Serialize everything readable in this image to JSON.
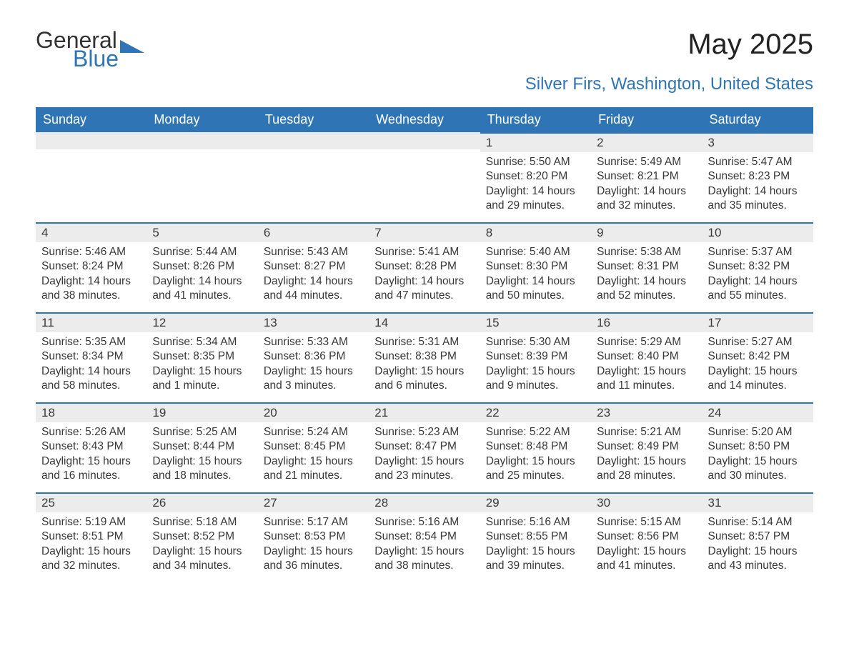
{
  "logo": {
    "word1": "General",
    "word2": "Blue"
  },
  "title": "May 2025",
  "subtitle": "Silver Firs, Washington, United States",
  "colors": {
    "accent": "#2f75b5",
    "header_text": "#ffffff",
    "daybar_bg": "#ececec",
    "daybar_border": "#2f75b5",
    "body_text": "#383838",
    "title_text": "#222222",
    "background": "#ffffff"
  },
  "font_sizes": {
    "title": 40,
    "subtitle": 24,
    "day_header": 18,
    "day_number": 17,
    "body": 15.5,
    "logo": 32
  },
  "layout": {
    "columns": 7,
    "rows": 5,
    "aspect_ratio": "1188x918"
  },
  "day_headers": [
    "Sunday",
    "Monday",
    "Tuesday",
    "Wednesday",
    "Thursday",
    "Friday",
    "Saturday"
  ],
  "weeks": [
    [
      {
        "empty": true
      },
      {
        "empty": true
      },
      {
        "empty": true
      },
      {
        "empty": true
      },
      {
        "day": "1",
        "sunrise": "Sunrise: 5:50 AM",
        "sunset": "Sunset: 8:20 PM",
        "daylight": "Daylight: 14 hours and 29 minutes."
      },
      {
        "day": "2",
        "sunrise": "Sunrise: 5:49 AM",
        "sunset": "Sunset: 8:21 PM",
        "daylight": "Daylight: 14 hours and 32 minutes."
      },
      {
        "day": "3",
        "sunrise": "Sunrise: 5:47 AM",
        "sunset": "Sunset: 8:23 PM",
        "daylight": "Daylight: 14 hours and 35 minutes."
      }
    ],
    [
      {
        "day": "4",
        "sunrise": "Sunrise: 5:46 AM",
        "sunset": "Sunset: 8:24 PM",
        "daylight": "Daylight: 14 hours and 38 minutes."
      },
      {
        "day": "5",
        "sunrise": "Sunrise: 5:44 AM",
        "sunset": "Sunset: 8:26 PM",
        "daylight": "Daylight: 14 hours and 41 minutes."
      },
      {
        "day": "6",
        "sunrise": "Sunrise: 5:43 AM",
        "sunset": "Sunset: 8:27 PM",
        "daylight": "Daylight: 14 hours and 44 minutes."
      },
      {
        "day": "7",
        "sunrise": "Sunrise: 5:41 AM",
        "sunset": "Sunset: 8:28 PM",
        "daylight": "Daylight: 14 hours and 47 minutes."
      },
      {
        "day": "8",
        "sunrise": "Sunrise: 5:40 AM",
        "sunset": "Sunset: 8:30 PM",
        "daylight": "Daylight: 14 hours and 50 minutes."
      },
      {
        "day": "9",
        "sunrise": "Sunrise: 5:38 AM",
        "sunset": "Sunset: 8:31 PM",
        "daylight": "Daylight: 14 hours and 52 minutes."
      },
      {
        "day": "10",
        "sunrise": "Sunrise: 5:37 AM",
        "sunset": "Sunset: 8:32 PM",
        "daylight": "Daylight: 14 hours and 55 minutes."
      }
    ],
    [
      {
        "day": "11",
        "sunrise": "Sunrise: 5:35 AM",
        "sunset": "Sunset: 8:34 PM",
        "daylight": "Daylight: 14 hours and 58 minutes."
      },
      {
        "day": "12",
        "sunrise": "Sunrise: 5:34 AM",
        "sunset": "Sunset: 8:35 PM",
        "daylight": "Daylight: 15 hours and 1 minute."
      },
      {
        "day": "13",
        "sunrise": "Sunrise: 5:33 AM",
        "sunset": "Sunset: 8:36 PM",
        "daylight": "Daylight: 15 hours and 3 minutes."
      },
      {
        "day": "14",
        "sunrise": "Sunrise: 5:31 AM",
        "sunset": "Sunset: 8:38 PM",
        "daylight": "Daylight: 15 hours and 6 minutes."
      },
      {
        "day": "15",
        "sunrise": "Sunrise: 5:30 AM",
        "sunset": "Sunset: 8:39 PM",
        "daylight": "Daylight: 15 hours and 9 minutes."
      },
      {
        "day": "16",
        "sunrise": "Sunrise: 5:29 AM",
        "sunset": "Sunset: 8:40 PM",
        "daylight": "Daylight: 15 hours and 11 minutes."
      },
      {
        "day": "17",
        "sunrise": "Sunrise: 5:27 AM",
        "sunset": "Sunset: 8:42 PM",
        "daylight": "Daylight: 15 hours and 14 minutes."
      }
    ],
    [
      {
        "day": "18",
        "sunrise": "Sunrise: 5:26 AM",
        "sunset": "Sunset: 8:43 PM",
        "daylight": "Daylight: 15 hours and 16 minutes."
      },
      {
        "day": "19",
        "sunrise": "Sunrise: 5:25 AM",
        "sunset": "Sunset: 8:44 PM",
        "daylight": "Daylight: 15 hours and 18 minutes."
      },
      {
        "day": "20",
        "sunrise": "Sunrise: 5:24 AM",
        "sunset": "Sunset: 8:45 PM",
        "daylight": "Daylight: 15 hours and 21 minutes."
      },
      {
        "day": "21",
        "sunrise": "Sunrise: 5:23 AM",
        "sunset": "Sunset: 8:47 PM",
        "daylight": "Daylight: 15 hours and 23 minutes."
      },
      {
        "day": "22",
        "sunrise": "Sunrise: 5:22 AM",
        "sunset": "Sunset: 8:48 PM",
        "daylight": "Daylight: 15 hours and 25 minutes."
      },
      {
        "day": "23",
        "sunrise": "Sunrise: 5:21 AM",
        "sunset": "Sunset: 8:49 PM",
        "daylight": "Daylight: 15 hours and 28 minutes."
      },
      {
        "day": "24",
        "sunrise": "Sunrise: 5:20 AM",
        "sunset": "Sunset: 8:50 PM",
        "daylight": "Daylight: 15 hours and 30 minutes."
      }
    ],
    [
      {
        "day": "25",
        "sunrise": "Sunrise: 5:19 AM",
        "sunset": "Sunset: 8:51 PM",
        "daylight": "Daylight: 15 hours and 32 minutes."
      },
      {
        "day": "26",
        "sunrise": "Sunrise: 5:18 AM",
        "sunset": "Sunset: 8:52 PM",
        "daylight": "Daylight: 15 hours and 34 minutes."
      },
      {
        "day": "27",
        "sunrise": "Sunrise: 5:17 AM",
        "sunset": "Sunset: 8:53 PM",
        "daylight": "Daylight: 15 hours and 36 minutes."
      },
      {
        "day": "28",
        "sunrise": "Sunrise: 5:16 AM",
        "sunset": "Sunset: 8:54 PM",
        "daylight": "Daylight: 15 hours and 38 minutes."
      },
      {
        "day": "29",
        "sunrise": "Sunrise: 5:16 AM",
        "sunset": "Sunset: 8:55 PM",
        "daylight": "Daylight: 15 hours and 39 minutes."
      },
      {
        "day": "30",
        "sunrise": "Sunrise: 5:15 AM",
        "sunset": "Sunset: 8:56 PM",
        "daylight": "Daylight: 15 hours and 41 minutes."
      },
      {
        "day": "31",
        "sunrise": "Sunrise: 5:14 AM",
        "sunset": "Sunset: 8:57 PM",
        "daylight": "Daylight: 15 hours and 43 minutes."
      }
    ]
  ]
}
